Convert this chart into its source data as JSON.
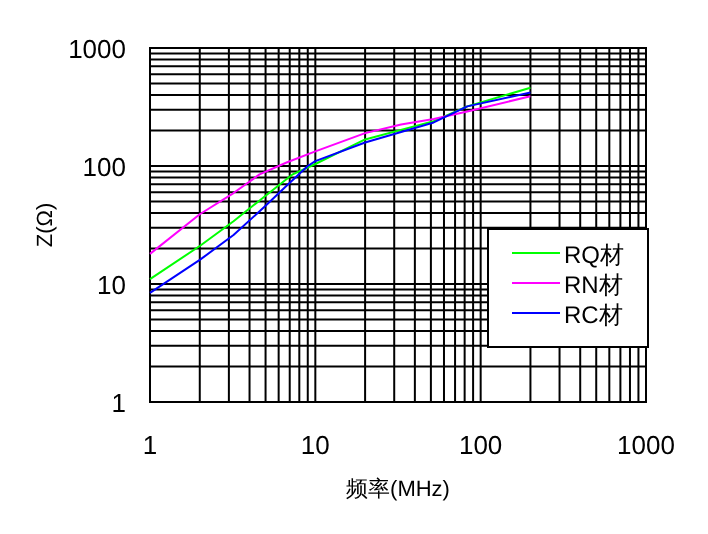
{
  "chart_data": {
    "type": "line",
    "xlabel": "频率(MHz)",
    "ylabel": "Z(Ω)",
    "log": "xy",
    "grid": true,
    "legend": "right",
    "xlim": [
      1,
      1000
    ],
    "ylim": [
      1,
      1000
    ],
    "xticks": [
      1,
      10,
      100,
      1000
    ],
    "yticks": [
      1,
      10,
      100,
      1000
    ],
    "series": [
      {
        "name": "RQ材",
        "color": "#00ff00",
        "x": [
          1,
          2,
          3.2,
          5,
          7.3,
          10,
          20,
          52,
          83,
          200
        ],
        "values": [
          11,
          21,
          34,
          56,
          85,
          104,
          168,
          240,
          320,
          460
        ]
      },
      {
        "name": "RN材",
        "color": "#ff00ff",
        "x": [
          1,
          2,
          3.2,
          4.6,
          6.7,
          10,
          20,
          33,
          52,
          83,
          200
        ],
        "values": [
          18,
          39,
          59,
          85,
          107,
          133,
          190,
          225,
          250,
          290,
          390
        ]
      },
      {
        "name": "RC材",
        "color": "#0000ff",
        "x": [
          1,
          2,
          3.2,
          5,
          6.7,
          9,
          10,
          20,
          52,
          83,
          200
        ],
        "values": [
          8.4,
          16,
          26,
          46,
          68,
          100,
          110,
          158,
          234,
          320,
          420
        ]
      }
    ]
  }
}
